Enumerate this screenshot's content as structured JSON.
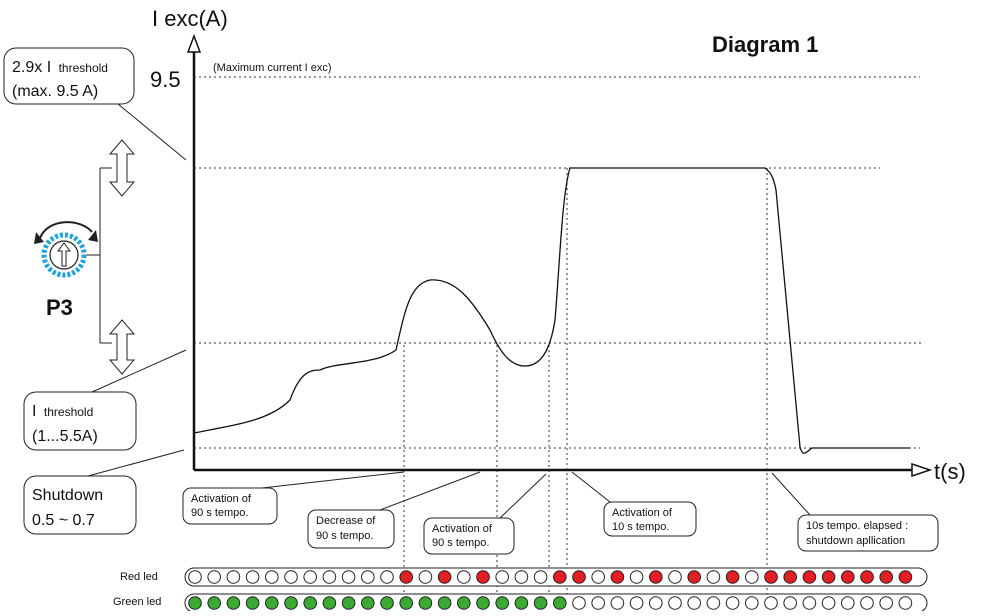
{
  "diagram": {
    "title": "Diagram 1",
    "y_axis_label": "I exc(A)",
    "x_axis_label": "t(s)",
    "max_value": "9.5",
    "max_note": "(Maximum current I exc)",
    "left_labels": {
      "high_line1_a": "2.9x I",
      "high_line1_b": "threshold",
      "high_line2": "(max. 9.5 A)",
      "threshold_a": "I",
      "threshold_b": "threshold",
      "threshold_range": "(1...5.5A)",
      "shutdown_title": "Shutdown",
      "shutdown_range": "0.5 ~ 0.7",
      "potentiometer": "P3"
    },
    "callouts": [
      {
        "line1": "Activation of",
        "line2": "90 s tempo."
      },
      {
        "line1": "Decrease of",
        "line2": "90 s tempo."
      },
      {
        "line1": "Activation of",
        "line2": "90 s tempo."
      },
      {
        "line1": "Activation of",
        "line2": "10 s tempo."
      },
      {
        "line1": "10s tempo. elapsed :",
        "line2": "shutdown apllication"
      }
    ],
    "leds": {
      "red_label": "Red led",
      "green_label": "Green led",
      "on_red_color": "#e31e24",
      "on_green_color": "#3aaa35",
      "red_on_indices": [
        11,
        13,
        15,
        19,
        20,
        22,
        24,
        26,
        28,
        30,
        31,
        32,
        33,
        34,
        35,
        36,
        37
      ],
      "green_on_indices": [
        0,
        1,
        2,
        3,
        4,
        5,
        6,
        7,
        8,
        9,
        10,
        11,
        12,
        13,
        14,
        15,
        16,
        17,
        18,
        19
      ],
      "count": 38
    }
  }
}
